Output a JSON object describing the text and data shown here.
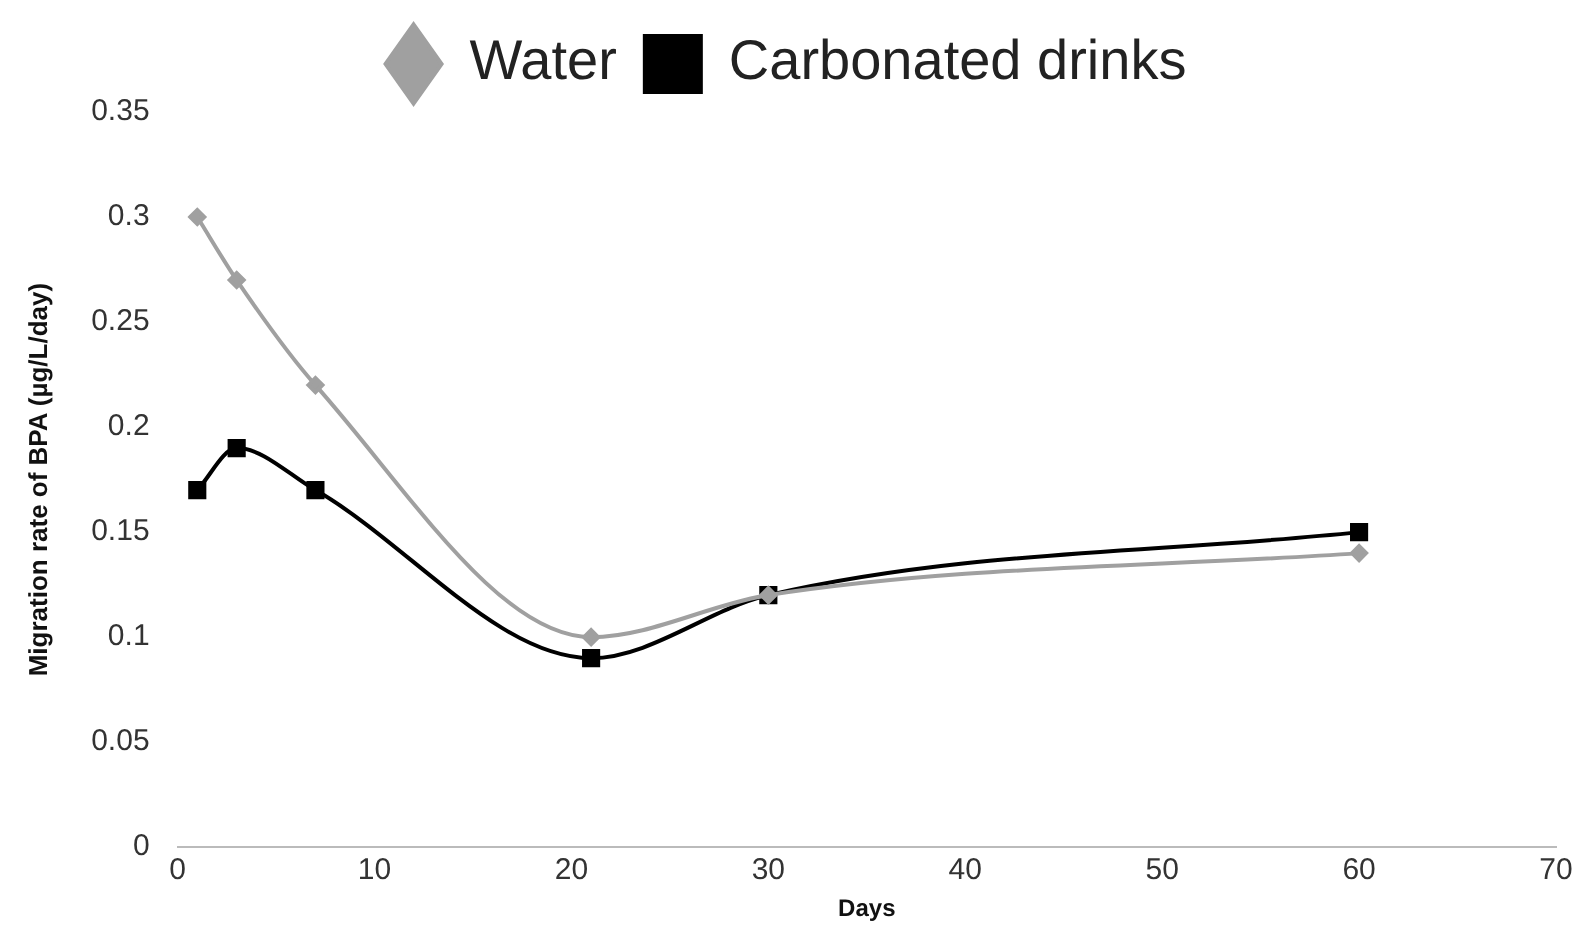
{
  "chart_data": {
    "type": "line",
    "xlabel": "Days",
    "ylabel": "Migration rate of BPA (µg/L/day)",
    "x": [
      1,
      3,
      7,
      21,
      30,
      60
    ],
    "series": [
      {
        "name": "Water",
        "color": "#a0a0a0",
        "marker": "diamond",
        "values": [
          0.3,
          0.27,
          0.22,
          0.1,
          0.12,
          0.14
        ]
      },
      {
        "name": "Carbonated drinks",
        "color": "#000000",
        "marker": "square",
        "values": [
          0.17,
          0.19,
          0.17,
          0.09,
          0.12,
          0.15
        ]
      }
    ],
    "xlim": [
      0,
      70
    ],
    "xticks": [
      0,
      10,
      20,
      30,
      40,
      50,
      60,
      70
    ],
    "ylim": [
      0,
      0.35
    ],
    "yticks": [
      0,
      0.05,
      0.1,
      0.15,
      0.2,
      0.25,
      0.3,
      0.35
    ],
    "grid": false,
    "legend": "top",
    "line_style": "solid"
  }
}
